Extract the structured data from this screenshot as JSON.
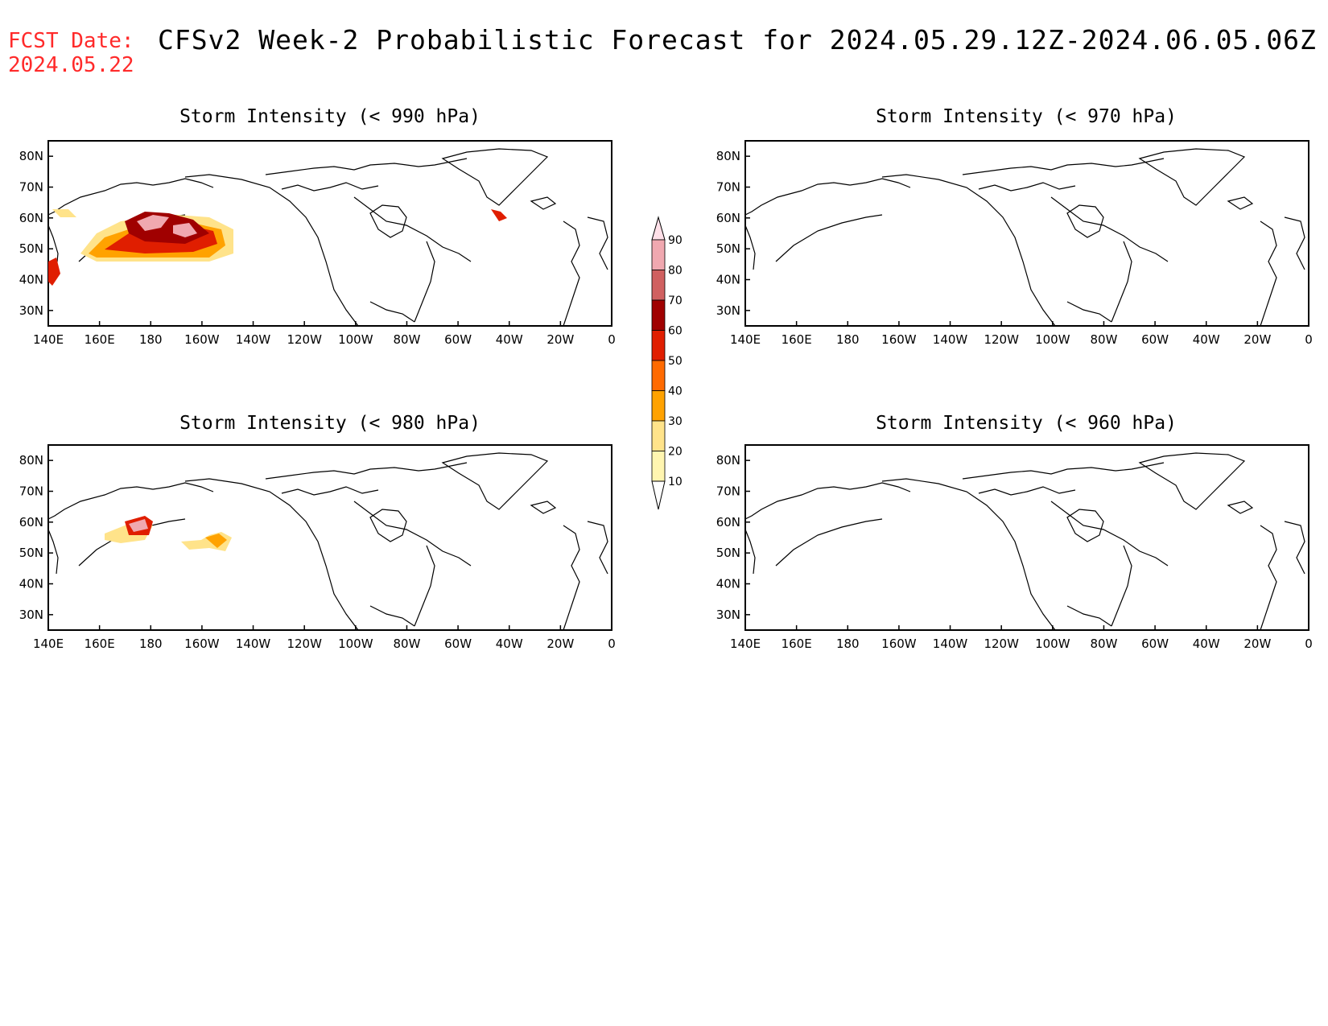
{
  "header": {
    "fcst_label": "FCST Date:",
    "fcst_date": "2024.05.22",
    "title": "CFSv2 Week-2 Probabilistic Forecast for 2024.05.29.12Z-2024.06.05.06Z"
  },
  "panels": [
    {
      "title": "Storm Intensity (< 990 hPa)"
    },
    {
      "title": "Storm Intensity (< 970 hPa)"
    },
    {
      "title": "Storm Intensity (< 980 hPa)"
    },
    {
      "title": "Storm Intensity (< 960 hPa)"
    }
  ],
  "axes": {
    "lon_labels": [
      "140E",
      "160E",
      "180",
      "160W",
      "140W",
      "120W",
      "100W",
      "80W",
      "60W",
      "40W",
      "20W",
      "0"
    ],
    "lat_labels": [
      "80N",
      "70N",
      "60N",
      "50N",
      "40N",
      "30N"
    ]
  },
  "colorbar": {
    "labels": [
      "10",
      "20",
      "30",
      "40",
      "50",
      "60",
      "70",
      "80",
      "90"
    ],
    "colors": [
      "#fff5b0",
      "#ffe38a",
      "#ffa200",
      "#ff6a00",
      "#e01e00",
      "#a00000",
      "#d06060",
      "#f0a8b0",
      "#ffe0e8"
    ]
  }
}
